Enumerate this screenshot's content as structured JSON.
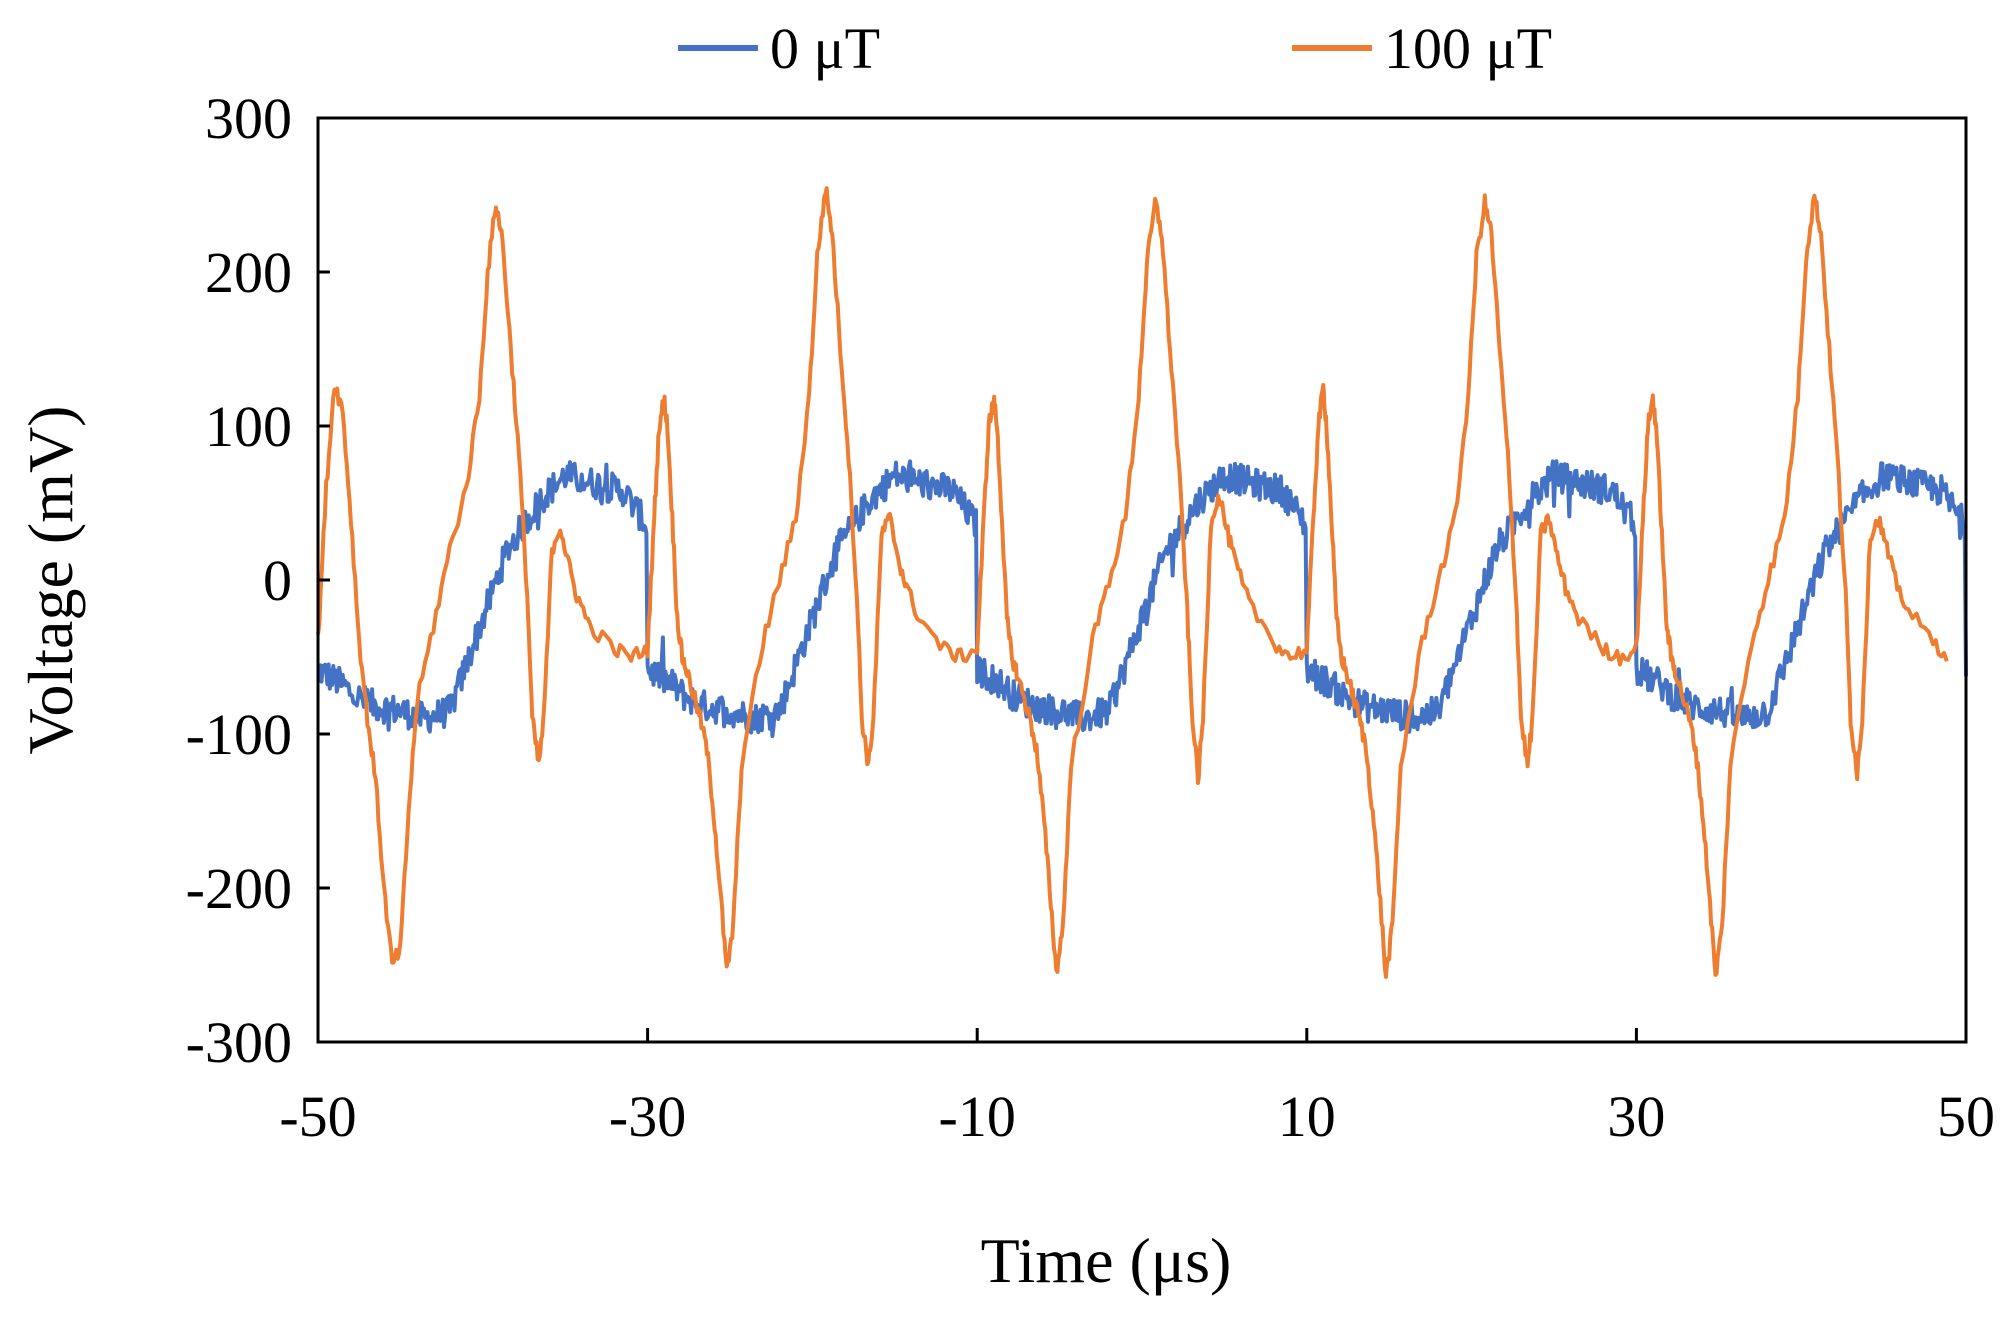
{
  "chart_data": {
    "type": "line",
    "title": "",
    "xlabel": "Time (μs)",
    "ylabel": "Voltage (mV)",
    "xlim": [
      -50,
      50
    ],
    "ylim": [
      -300,
      300
    ],
    "xticks": [
      -50,
      -30,
      -10,
      10,
      30,
      50
    ],
    "yticks": [
      300,
      200,
      100,
      0,
      -100,
      -200,
      -300
    ],
    "xtick_labels": [
      "-50",
      "-30",
      "-10",
      "10",
      "30",
      "50"
    ],
    "ytick_labels": [
      "300",
      "200",
      "100",
      "0",
      "-100",
      "-200",
      "-300"
    ],
    "grid": false,
    "legend_position": "top-center",
    "period_us": 20,
    "series": [
      {
        "name": "0 μT",
        "color": "#4472C4",
        "noise_mV": 10,
        "period_template": {
          "t": [
            0,
            1.5,
            2.2,
            3.5,
            5.0,
            6.5,
            8.0,
            9.5,
            11.5,
            13.5,
            15.0,
            17.0,
            18.5,
            20.0
          ],
          "v": [
            -58,
            -68,
            -75,
            -82,
            -85,
            -90,
            -85,
            -40,
            20,
            52,
            68,
            62,
            58,
            35
          ]
        },
        "phase_start_us": -50
      },
      {
        "name": "100 μT",
        "color": "#ED7D31",
        "noise_mV": 5,
        "points": {
          "t": [
            -50,
            -49.5,
            -49,
            -48.5,
            -48,
            -47.5,
            -47,
            -46.5,
            -46,
            -45.5,
            -45,
            -44.5,
            -44,
            -43,
            -42,
            -41,
            -40.2,
            -39.7,
            -39.2,
            -38.8,
            -38.3,
            -37.8,
            -37.3,
            -37,
            -36.6,
            -36.3,
            -35.8,
            -35.3,
            -34.8,
            -34.3,
            -33.5,
            -32,
            -31,
            -30,
            -29.6,
            -29.3,
            -29,
            -28.8,
            -28.5,
            -28.2,
            -27.9,
            -27.6,
            -27.2,
            -26.8,
            -26.4,
            -26,
            -25.6,
            -25.2,
            -24.8,
            -24.3,
            -23,
            -22,
            -21,
            -20.2,
            -19.7,
            -19.2,
            -18.8,
            -18.3,
            -17.8,
            -17.3,
            -17,
            -16.6,
            -16.3,
            -15.8,
            -15.3,
            -14.8,
            -14.3,
            -13.5,
            -12,
            -11,
            -10,
            -9.6,
            -9.3,
            -9,
            -8.8,
            -8.5,
            -8.2,
            -7.9,
            -7.6,
            -7.2,
            -6.8,
            -6.4,
            -6,
            -5.6,
            -5.2,
            -4.8,
            -4.3,
            -3,
            -2,
            -1,
            -0.2,
            0.3,
            0.8,
            1.2,
            1.7,
            2.2,
            2.7,
            3,
            3.4,
            3.7,
            4.2,
            4.7,
            5.2,
            5.7,
            6.5,
            8,
            9,
            10,
            10.4,
            10.7,
            11,
            11.2,
            11.5,
            11.8,
            12.1,
            12.4,
            12.8,
            13.2,
            13.6,
            14,
            14.4,
            14.8,
            15.2,
            15.7,
            17,
            18,
            19,
            19.8,
            20.3,
            20.8,
            21.2,
            21.7,
            22.2,
            22.7,
            23,
            23.4,
            23.7,
            24.2,
            24.7,
            25.2,
            25.7,
            26.5,
            28,
            29,
            30,
            30.4,
            30.7,
            31,
            31.2,
            31.5,
            31.8,
            32.1,
            32.4,
            32.8,
            33.2,
            33.6,
            34,
            34.4,
            34.8,
            35.2,
            35.7,
            37,
            38,
            39,
            39.8,
            40.3,
            40.8,
            41.2,
            41.7,
            42.2,
            42.7,
            43,
            43.4,
            43.7,
            44.2,
            44.7,
            45.2,
            45.7,
            46.5,
            48,
            49,
            50
          ],
          "v": [
            -40,
            60,
            128,
            110,
            40,
            -40,
            -90,
            -130,
            -200,
            -250,
            -240,
            -150,
            -80,
            -30,
            20,
            60,
            120,
            200,
            245,
            220,
            150,
            80,
            -10,
            -90,
            -120,
            -90,
            20,
            35,
            10,
            -10,
            -30,
            -45,
            -50,
            -45,
            40,
            100,
            118,
            100,
            40,
            -25,
            -50,
            -60,
            -75,
            -90,
            -110,
            -150,
            -200,
            -255,
            -225,
            -120,
            -40,
            0,
            40,
            120,
            210,
            255,
            225,
            150,
            80,
            -10,
            -90,
            -120,
            -90,
            30,
            40,
            15,
            -5,
            -25,
            -45,
            -50,
            -45,
            40,
            100,
            118,
            100,
            40,
            -25,
            -50,
            -60,
            -75,
            -90,
            -110,
            -150,
            -200,
            -255,
            -225,
            -120,
            -40,
            0,
            40,
            120,
            205,
            245,
            225,
            150,
            80,
            -10,
            -80,
            -130,
            -90,
            40,
            55,
            30,
            10,
            -15,
            -40,
            -50,
            -45,
            40,
            100,
            125,
            100,
            40,
            -25,
            -50,
            -60,
            -75,
            -90,
            -110,
            -150,
            -200,
            -258,
            -225,
            -120,
            -40,
            0,
            40,
            120,
            210,
            245,
            225,
            150,
            80,
            -10,
            -90,
            -120,
            -90,
            30,
            40,
            15,
            -5,
            -25,
            -45,
            -50,
            -45,
            40,
            100,
            118,
            100,
            40,
            -25,
            -50,
            -60,
            -75,
            -90,
            -110,
            -150,
            -200,
            -258,
            -225,
            -120,
            -40,
            0,
            40,
            120,
            210,
            250,
            225,
            150,
            80,
            -10,
            -90,
            -125,
            -90,
            30,
            40,
            20,
            0,
            -20,
            -40,
            -50
          ]
        }
      }
    ]
  }
}
